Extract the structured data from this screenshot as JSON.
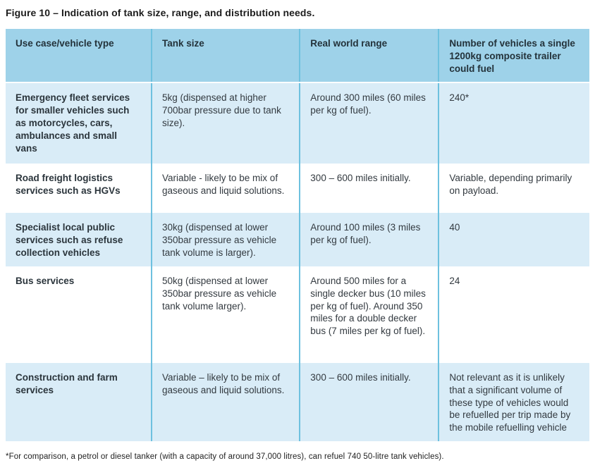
{
  "figure": {
    "title": "Figure 10 – Indication of tank size, range, and distribution needs.",
    "footnote": "*For comparison, a petrol or diesel tanker (with a capacity of around 37,000 litres), can refuel 740 50-litre tank vehicles)."
  },
  "table": {
    "columns": [
      "Use case/vehicle type",
      "Tank size",
      "Real world range",
      "Number of vehicles a single 1200kg composite trailer could fuel"
    ],
    "rows": [
      [
        "Emergency fleet services for smaller vehicles such as motorcycles, cars, ambulances and small vans",
        "5kg (dispensed at higher 700bar pressure due to tank size).",
        "Around 300 miles (60 miles per kg of fuel).",
        "240*"
      ],
      [
        "Road freight logistics services such as HGVs",
        "Variable - likely to be mix of gaseous and liquid solutions.",
        "300 – 600 miles initially.",
        "Variable, depending primarily on payload."
      ],
      [
        "Specialist local public services such as refuse collection vehicles",
        "30kg (dispensed at lower 350bar pressure as vehicle tank volume is larger).",
        "Around 100 miles (3 miles per kg of fuel).",
        "40"
      ],
      [
        "Bus services",
        "50kg (dispensed at lower 350bar pressure as vehicle tank volume larger).",
        "Around 500 miles for a single decker bus (10 miles per kg of fuel). Around 350 miles for a double decker bus (7 miles per kg of fuel).",
        "24"
      ],
      [
        "Construction and farm services",
        "Variable – likely to be mix of gaseous and liquid solutions.",
        "300 – 600 miles initially.",
        "Not relevant as it is unlikely that a significant volume of these type of vehicles would be refuelled per trip made by the mobile refuelling vehicle"
      ]
    ]
  },
  "colors": {
    "header_fill": "#9ed2e9",
    "row_alt_fill": "#d9ecf7",
    "row_fill": "#ffffff",
    "divider": "#6ec1df",
    "text": "#333a40"
  }
}
